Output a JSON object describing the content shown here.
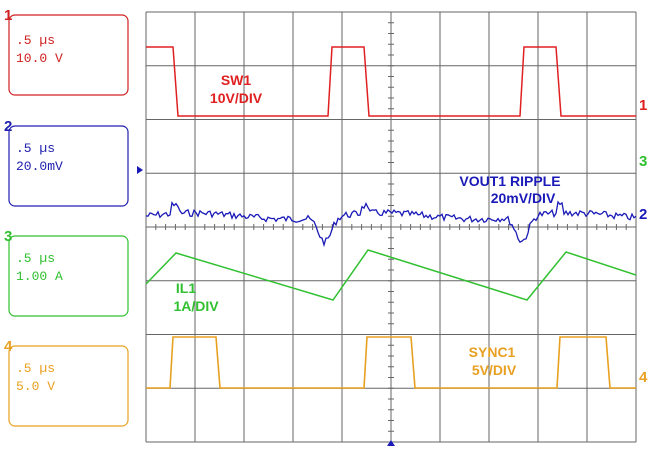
{
  "channels": [
    {
      "number": "1",
      "time": ".5 µs",
      "scale": "10.0 V"
    },
    {
      "number": "2",
      "time": ".5 µs",
      "scale": "20.0mV"
    },
    {
      "number": "3",
      "time": ".5 µs",
      "scale": "1.00 A"
    },
    {
      "number": "4",
      "time": ".5 µs",
      "scale": "5.0 V"
    }
  ],
  "traces": [
    {
      "name": "SW1",
      "scale": "10V/DIV"
    },
    {
      "name": "VOUT1 RIPPLE",
      "scale": "20mV/DIV"
    },
    {
      "name": "IL1",
      "scale": "1A/DIV"
    },
    {
      "name": "SYNC1",
      "scale": "5V/DIV"
    }
  ]
}
